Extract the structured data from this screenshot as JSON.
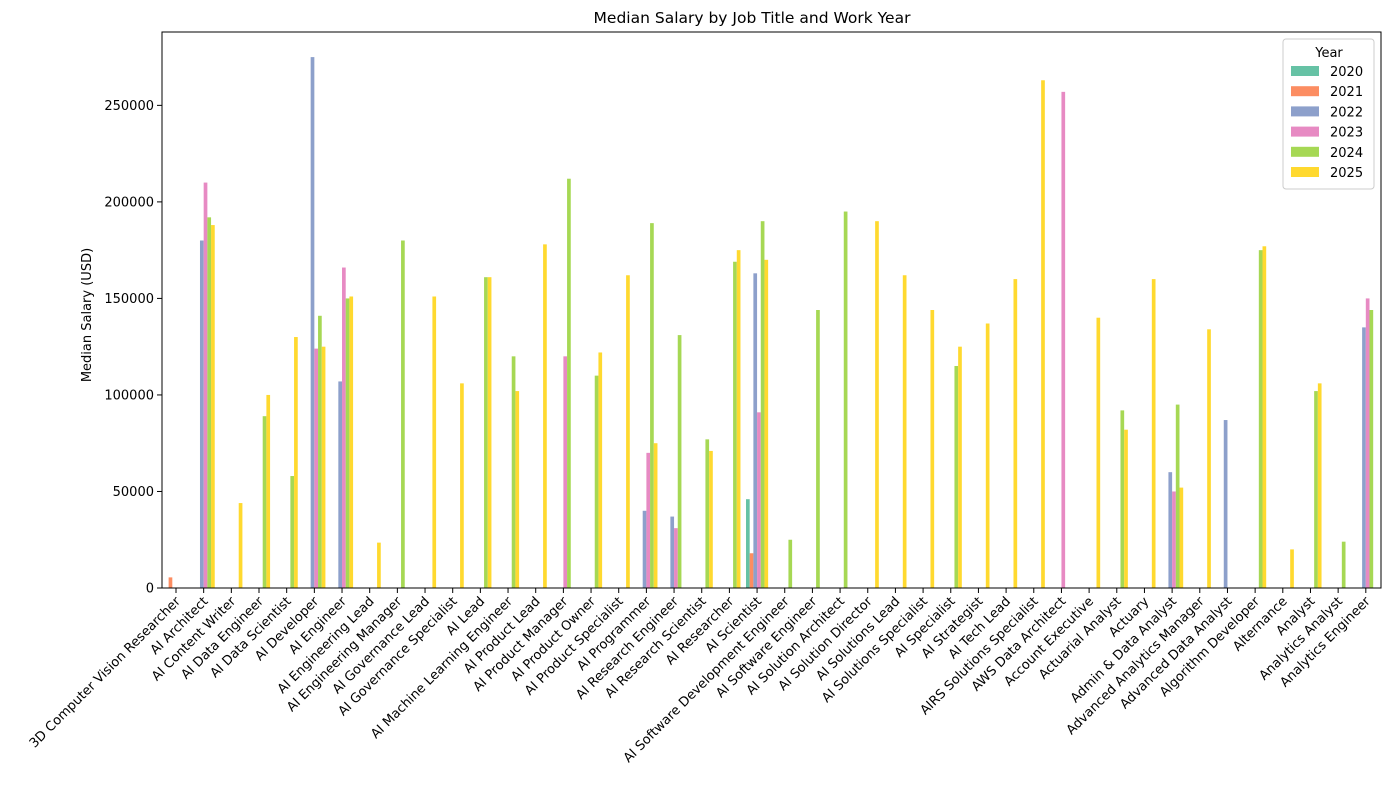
{
  "chart_data": {
    "type": "bar",
    "title": "Median Salary by Job Title and Work Year",
    "xlabel": "",
    "ylabel": "Median Salary (USD)",
    "ylim": [
      0,
      288000
    ],
    "yticks": [
      0,
      50000,
      100000,
      150000,
      200000,
      250000
    ],
    "grid": false,
    "legend": {
      "title": "Year",
      "placement": "top-right"
    },
    "categories": [
      "3D Computer Vision Researcher",
      "AI Architect",
      "AI Content Writer",
      "AI Data Engineer",
      "AI Data Scientist",
      "AI Developer",
      "AI Engineer",
      "AI Engineering Lead",
      "AI Engineering Manager",
      "AI Governance Lead",
      "AI Governance Specialist",
      "AI Lead",
      "AI Machine Learning Engineer",
      "AI Product Lead",
      "AI Product Manager",
      "AI Product Owner",
      "AI Product Specialist",
      "AI Programmer",
      "AI Research Engineer",
      "AI Research Scientist",
      "AI Researcher",
      "AI Scientist",
      "AI Software Development Engineer",
      "AI Software Engineer",
      "AI Solution Architect",
      "AI Solution Director",
      "AI Solutions Lead",
      "AI Solutions Specialist",
      "AI Specialist",
      "AI Strategist",
      "AI Tech Lead",
      "AIRS Solutions Specialist",
      "AWS Data Architect",
      "Account Executive",
      "Actuarial Analyst",
      "Actuary",
      "Admin & Data Analyst",
      "Advanced Analytics Manager",
      "Advanced Data Analyst",
      "Algorithm Developer",
      "Alternance",
      "Analyst",
      "Analytics Analyst",
      "Analytics Engineer"
    ],
    "series": [
      {
        "name": "2020",
        "color": "#66c2a5",
        "values": [
          null,
          null,
          null,
          null,
          null,
          null,
          null,
          null,
          null,
          null,
          null,
          null,
          null,
          null,
          null,
          null,
          null,
          null,
          null,
          null,
          null,
          46000,
          null,
          null,
          null,
          null,
          null,
          null,
          null,
          null,
          null,
          null,
          null,
          null,
          null,
          null,
          null,
          null,
          null,
          null,
          null,
          null,
          null,
          null
        ]
      },
      {
        "name": "2021",
        "color": "#fc8d62",
        "values": [
          5500,
          null,
          null,
          null,
          null,
          null,
          null,
          null,
          null,
          null,
          null,
          null,
          null,
          null,
          null,
          null,
          null,
          null,
          null,
          null,
          null,
          18000,
          null,
          null,
          null,
          null,
          null,
          null,
          null,
          null,
          null,
          null,
          null,
          null,
          null,
          null,
          null,
          null,
          null,
          null,
          null,
          null,
          null,
          null
        ]
      },
      {
        "name": "2022",
        "color": "#8da0cb",
        "values": [
          null,
          180000,
          null,
          null,
          null,
          275000,
          107000,
          null,
          null,
          null,
          null,
          null,
          null,
          null,
          null,
          null,
          null,
          40000,
          37000,
          null,
          null,
          163000,
          null,
          null,
          null,
          null,
          null,
          null,
          null,
          null,
          null,
          null,
          null,
          null,
          null,
          null,
          60000,
          null,
          87000,
          null,
          null,
          null,
          null,
          135000
        ]
      },
      {
        "name": "2023",
        "color": "#e78ac3",
        "values": [
          null,
          210000,
          null,
          null,
          null,
          124000,
          166000,
          null,
          null,
          null,
          null,
          null,
          null,
          null,
          120000,
          null,
          null,
          70000,
          31000,
          null,
          null,
          91000,
          null,
          null,
          null,
          null,
          null,
          null,
          null,
          null,
          null,
          null,
          257000,
          null,
          null,
          null,
          50000,
          null,
          null,
          null,
          null,
          null,
          null,
          150000
        ]
      },
      {
        "name": "2024",
        "color": "#a6d854",
        "values": [
          null,
          192000,
          null,
          89000,
          58000,
          141000,
          150000,
          null,
          180000,
          null,
          null,
          161000,
          120000,
          null,
          212000,
          110000,
          null,
          189000,
          131000,
          77000,
          169000,
          190000,
          25000,
          144000,
          195000,
          null,
          null,
          null,
          115000,
          null,
          null,
          null,
          null,
          null,
          92000,
          null,
          95000,
          null,
          null,
          175000,
          null,
          102000,
          24000,
          144000
        ]
      },
      {
        "name": "2025",
        "color": "#ffd92f",
        "values": [
          null,
          188000,
          44000,
          100000,
          130000,
          125000,
          151000,
          23500,
          null,
          151000,
          106000,
          161000,
          102000,
          178000,
          null,
          122000,
          162000,
          75000,
          null,
          71000,
          175000,
          170000,
          null,
          null,
          null,
          190000,
          162000,
          144000,
          125000,
          137000,
          160000,
          263000,
          null,
          140000,
          82000,
          160000,
          52000,
          134000,
          null,
          177000,
          20000,
          106000,
          null,
          null
        ]
      }
    ]
  }
}
